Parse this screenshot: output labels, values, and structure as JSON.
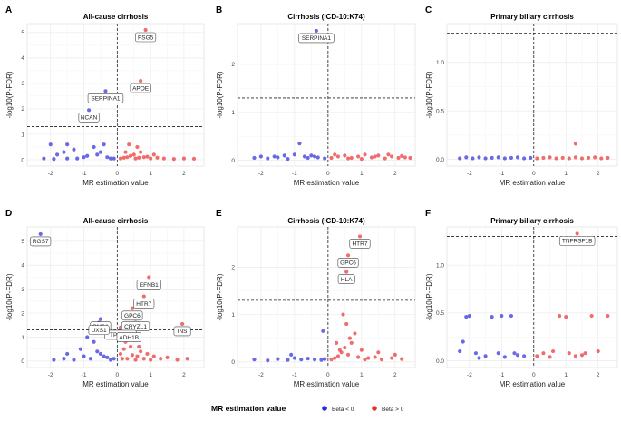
{
  "colors": {
    "neg": "#2b2bdc",
    "pos": "#e8312f",
    "panel_bg": "#ffffff",
    "grid": "#ebebeb",
    "ref": "#222222"
  },
  "legend": {
    "title": "MR estimation value",
    "items": [
      {
        "label": "Beta < 0",
        "color": "#2b2bdc"
      },
      {
        "label": "Beta > 0",
        "color": "#e8312f"
      }
    ]
  },
  "chart_data": [
    {
      "panel": "A",
      "type": "scatter",
      "title": "All-cause cirrhosis",
      "xlabel": "MR estimation value",
      "ylabel": "-log10(P-FDR)",
      "xlim": [
        -2.7,
        2.6
      ],
      "ylim": [
        -0.25,
        5.35
      ],
      "xticks": [
        -2,
        -1,
        0,
        1,
        2
      ],
      "yticks": [
        0,
        1,
        2,
        3,
        4,
        5
      ],
      "threshold": 1.3,
      "points": [
        [
          -2.2,
          0.05
        ],
        [
          -1.9,
          0.03
        ],
        [
          -1.5,
          0.05
        ],
        [
          -1.2,
          0.05
        ],
        [
          -1.0,
          0.1
        ],
        [
          -0.9,
          0.15
        ],
        [
          -0.7,
          0.5
        ],
        [
          -0.5,
          0.3
        ],
        [
          -0.3,
          0.1
        ],
        [
          -0.2,
          0.05
        ],
        [
          -0.4,
          0.6
        ],
        [
          -0.6,
          0.2
        ],
        [
          -1.3,
          0.4
        ],
        [
          -1.5,
          0.6
        ],
        [
          -1.8,
          0.2
        ],
        [
          -0.1,
          0.05
        ],
        [
          -2.0,
          0.6
        ],
        [
          -1.6,
          0.3
        ],
        [
          0.1,
          0.05
        ],
        [
          0.2,
          0.08
        ],
        [
          0.3,
          0.1
        ],
        [
          0.4,
          0.15
        ],
        [
          0.5,
          0.2
        ],
        [
          0.6,
          0.5
        ],
        [
          0.7,
          0.3
        ],
        [
          0.8,
          0.1
        ],
        [
          1.0,
          0.05
        ],
        [
          1.2,
          0.08
        ],
        [
          1.4,
          0.05
        ],
        [
          1.7,
          0.03
        ],
        [
          2.0,
          0.05
        ],
        [
          2.3,
          0.04
        ],
        [
          0.9,
          0.12
        ],
        [
          0.35,
          0.6
        ],
        [
          0.55,
          0.05
        ],
        [
          0.65,
          0.08
        ],
        [
          0.25,
          0.3
        ],
        [
          1.1,
          0.2
        ]
      ],
      "labeled_points": [
        {
          "label": "PSG5",
          "x": 0.85,
          "y": 5.1
        },
        {
          "label": "APOE",
          "x": 0.7,
          "y": 3.1
        },
        {
          "label": "SERPINA1",
          "x": -0.35,
          "y": 2.7
        },
        {
          "label": "NCAN",
          "x": -0.85,
          "y": 1.95
        }
      ]
    },
    {
      "panel": "B",
      "type": "scatter",
      "title": "Cirrhosis (ICD-10:K74)",
      "xlabel": "MR estimation value",
      "ylabel": "-log10(P-FDR)",
      "xlim": [
        -2.7,
        2.6
      ],
      "ylim": [
        -0.12,
        2.85
      ],
      "xticks": [
        -2,
        -1,
        0,
        1,
        2
      ],
      "yticks": [
        0,
        1,
        2
      ],
      "threshold": 1.3,
      "points": [
        [
          -2.2,
          0.05
        ],
        [
          -2.0,
          0.08
        ],
        [
          -1.8,
          0.04
        ],
        [
          -1.5,
          0.06
        ],
        [
          -1.3,
          0.1
        ],
        [
          -1.2,
          0.03
        ],
        [
          -1.0,
          0.12
        ],
        [
          -0.85,
          0.35
        ],
        [
          -0.7,
          0.08
        ],
        [
          -0.6,
          0.05
        ],
        [
          -0.5,
          0.1
        ],
        [
          -0.3,
          0.06
        ],
        [
          -0.1,
          0.04
        ],
        [
          -1.6,
          0.08
        ],
        [
          -0.4,
          0.08
        ],
        [
          0.1,
          0.05
        ],
        [
          0.3,
          0.08
        ],
        [
          0.5,
          0.1
        ],
        [
          0.7,
          0.05
        ],
        [
          0.9,
          0.08
        ],
        [
          1.1,
          0.12
        ],
        [
          1.3,
          0.06
        ],
        [
          1.5,
          0.1
        ],
        [
          1.7,
          0.04
        ],
        [
          1.9,
          0.08
        ],
        [
          2.1,
          0.05
        ],
        [
          2.3,
          0.06
        ],
        [
          2.45,
          0.05
        ],
        [
          0.2,
          0.12
        ],
        [
          0.6,
          0.04
        ],
        [
          1.0,
          0.03
        ],
        [
          1.4,
          0.08
        ],
        [
          1.8,
          0.12
        ],
        [
          2.2,
          0.09
        ]
      ],
      "labeled_points": [
        {
          "label": "SERPINA1",
          "x": -0.35,
          "y": 2.7
        }
      ]
    },
    {
      "panel": "C",
      "type": "scatter",
      "title": "Primary biliary cirrhosis",
      "xlabel": "MR estimation value",
      "ylabel": "-log10(P-FDR)",
      "xlim": [
        -2.7,
        2.6
      ],
      "ylim": [
        -0.07,
        1.4
      ],
      "xticks": [
        -2,
        -1,
        0,
        1,
        2
      ],
      "yticks": [
        0.0,
        0.5,
        1.0
      ],
      "threshold": 1.3,
      "points": [
        [
          -2.3,
          0.01
        ],
        [
          -2.1,
          0.02
        ],
        [
          -1.9,
          0.01
        ],
        [
          -1.7,
          0.02
        ],
        [
          -1.5,
          0.01
        ],
        [
          -1.3,
          0.015
        ],
        [
          -1.1,
          0.02
        ],
        [
          -0.9,
          0.01
        ],
        [
          -0.7,
          0.015
        ],
        [
          -0.5,
          0.02
        ],
        [
          -0.3,
          0.01
        ],
        [
          -0.1,
          0.015
        ],
        [
          0.1,
          0.01
        ],
        [
          0.3,
          0.015
        ],
        [
          0.5,
          0.02
        ],
        [
          0.7,
          0.01
        ],
        [
          0.9,
          0.015
        ],
        [
          1.1,
          0.01
        ],
        [
          1.3,
          0.02
        ],
        [
          1.5,
          0.01
        ],
        [
          1.7,
          0.015
        ],
        [
          1.9,
          0.02
        ],
        [
          2.1,
          0.01
        ],
        [
          2.3,
          0.015
        ],
        [
          1.3,
          0.16
        ]
      ],
      "labeled_points": []
    },
    {
      "panel": "D",
      "type": "scatter",
      "title": "All-cause cirrhosis",
      "xlabel": "MR estimation value",
      "ylabel": "-log10(P-FDR)",
      "xlim": [
        -2.7,
        2.6
      ],
      "ylim": [
        -0.27,
        5.6
      ],
      "xticks": [
        -2,
        -1,
        0,
        1,
        2
      ],
      "yticks": [
        0,
        1,
        2,
        3,
        4,
        5
      ],
      "threshold": 1.3,
      "points": [
        [
          -1.9,
          0.05
        ],
        [
          -1.6,
          0.1
        ],
        [
          -1.3,
          0.05
        ],
        [
          -1.0,
          0.2
        ],
        [
          -0.8,
          0.1
        ],
        [
          -0.6,
          0.4
        ],
        [
          -0.5,
          0.3
        ],
        [
          -0.3,
          0.15
        ],
        [
          -0.2,
          0.05
        ],
        [
          -0.1,
          0.1
        ],
        [
          -1.1,
          0.5
        ],
        [
          -0.7,
          0.8
        ],
        [
          -0.9,
          1.0
        ],
        [
          -1.5,
          0.3
        ],
        [
          -0.4,
          0.2
        ],
        [
          0.1,
          0.3
        ],
        [
          0.2,
          0.5
        ],
        [
          0.3,
          0.1
        ],
        [
          0.4,
          0.6
        ],
        [
          0.5,
          0.9
        ],
        [
          0.6,
          0.2
        ],
        [
          0.7,
          0.4
        ],
        [
          0.8,
          0.1
        ],
        [
          0.9,
          0.3
        ],
        [
          1.1,
          0.2
        ],
        [
          1.3,
          0.1
        ],
        [
          1.5,
          0.15
        ],
        [
          1.8,
          0.05
        ],
        [
          2.1,
          0.1
        ],
        [
          0.25,
          0.8
        ],
        [
          0.35,
          1.0
        ],
        [
          0.55,
          0.05
        ],
        [
          0.45,
          0.25
        ],
        [
          1.0,
          0.05
        ],
        [
          0.15,
          0.1
        ],
        [
          0.65,
          0.6
        ]
      ],
      "labeled_points": [
        {
          "label": "RGS7",
          "x": -2.3,
          "y": 5.3
        },
        {
          "label": "EFNB1",
          "x": 0.95,
          "y": 3.5
        },
        {
          "label": "HTR7",
          "x": 0.8,
          "y": 2.7
        },
        {
          "label": "GPC6",
          "x": 0.45,
          "y": 2.2
        },
        {
          "label": "CRYZL1",
          "x": 0.55,
          "y": 1.75
        },
        {
          "label": "GM2A",
          "x": -0.5,
          "y": 1.75
        },
        {
          "label": "TP53I11",
          "x": 0.1,
          "y": 1.4
        },
        {
          "label": "UXS1",
          "x": -0.55,
          "y": 1.6
        },
        {
          "label": "ADH1B",
          "x": 0.35,
          "y": 1.3
        },
        {
          "label": "INS",
          "x": 1.95,
          "y": 1.55
        }
      ]
    },
    {
      "panel": "E",
      "type": "scatter",
      "title": "Cirrhosis (ICD-10:K74)",
      "xlabel": "MR estimation value",
      "ylabel": "-log10(P-FDR)",
      "xlim": [
        -2.7,
        2.6
      ],
      "ylim": [
        -0.12,
        2.85
      ],
      "xticks": [
        -2,
        -1,
        0,
        1,
        2
      ],
      "yticks": [
        0,
        1,
        2
      ],
      "threshold": 1.3,
      "points": [
        [
          -2.2,
          0.05
        ],
        [
          -1.8,
          0.03
        ],
        [
          -1.5,
          0.06
        ],
        [
          -1.2,
          0.04
        ],
        [
          -1.0,
          0.08
        ],
        [
          -0.8,
          0.05
        ],
        [
          -0.6,
          0.07
        ],
        [
          -0.4,
          0.05
        ],
        [
          -0.2,
          0.04
        ],
        [
          -0.1,
          0.06
        ],
        [
          -1.1,
          0.15
        ],
        [
          -0.15,
          0.65
        ],
        [
          0.1,
          0.05
        ],
        [
          0.2,
          0.08
        ],
        [
          0.3,
          0.12
        ],
        [
          0.4,
          0.2
        ],
        [
          0.5,
          0.3
        ],
        [
          0.6,
          0.15
        ],
        [
          0.7,
          0.4
        ],
        [
          0.8,
          0.6
        ],
        [
          0.9,
          0.1
        ],
        [
          1.0,
          0.25
        ],
        [
          1.1,
          0.05
        ],
        [
          1.2,
          0.08
        ],
        [
          1.4,
          0.1
        ],
        [
          1.6,
          0.05
        ],
        [
          1.9,
          0.08
        ],
        [
          2.2,
          0.06
        ],
        [
          0.45,
          1.0
        ],
        [
          0.55,
          0.8
        ],
        [
          0.65,
          0.5
        ],
        [
          0.35,
          0.25
        ],
        [
          1.5,
          0.2
        ],
        [
          2.0,
          0.15
        ],
        [
          0.25,
          0.4
        ]
      ],
      "labeled_points": [
        {
          "label": "HTR7",
          "x": 0.95,
          "y": 2.65
        },
        {
          "label": "GPC6",
          "x": 0.6,
          "y": 2.25
        },
        {
          "label": "HLA",
          "x": 0.55,
          "y": 1.9
        }
      ]
    },
    {
      "panel": "F",
      "type": "scatter",
      "title": "Primary biliary cirrhosis",
      "xlabel": "MR estimation value",
      "ylabel": "-log10(P-FDR)",
      "xlim": [
        -2.7,
        2.6
      ],
      "ylim": [
        -0.07,
        1.4
      ],
      "xticks": [
        -2,
        -1,
        0,
        1,
        2
      ],
      "yticks": [
        0.0,
        0.5,
        1.0
      ],
      "threshold": 1.3,
      "points": [
        [
          -2.3,
          0.1
        ],
        [
          -2.2,
          0.2
        ],
        [
          -2.0,
          0.47
        ],
        [
          -1.7,
          0.03
        ],
        [
          -1.5,
          0.05
        ],
        [
          -1.3,
          0.46
        ],
        [
          -1.1,
          0.08
        ],
        [
          -0.9,
          0.04
        ],
        [
          -0.7,
          0.47
        ],
        [
          -0.6,
          0.08
        ],
        [
          -0.5,
          0.06
        ],
        [
          -0.3,
          0.05
        ],
        [
          -1.8,
          0.08
        ],
        [
          -2.1,
          0.46
        ],
        [
          -1.0,
          0.47
        ],
        [
          0.1,
          0.05
        ],
        [
          0.3,
          0.08
        ],
        [
          0.5,
          0.04
        ],
        [
          0.8,
          0.47
        ],
        [
          1.0,
          0.46
        ],
        [
          1.1,
          0.08
        ],
        [
          1.3,
          0.05
        ],
        [
          1.6,
          0.08
        ],
        [
          1.8,
          0.47
        ],
        [
          2.0,
          0.1
        ],
        [
          2.3,
          0.47
        ],
        [
          0.6,
          0.1
        ],
        [
          1.5,
          0.06
        ]
      ],
      "labeled_points": [
        {
          "label": "TNFRSF1B",
          "x": 1.35,
          "y": 1.33
        }
      ]
    }
  ]
}
